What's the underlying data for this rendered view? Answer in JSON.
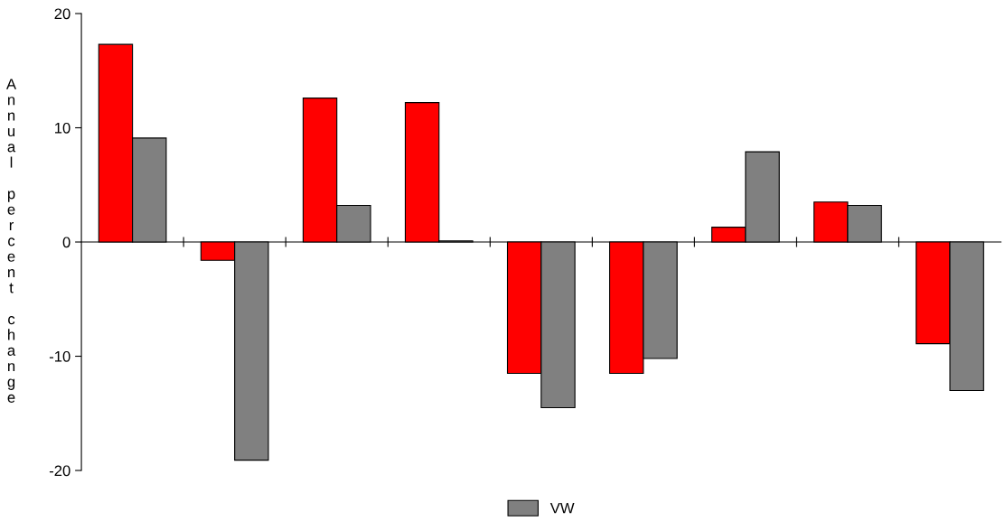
{
  "chart_data": {
    "type": "bar",
    "ylabel": "Annual percent change",
    "categories": [
      null,
      null,
      null,
      null,
      null,
      null,
      null,
      null,
      null
    ],
    "series": [
      {
        "color": "#ff0000",
        "values": [
          17.3,
          -1.6,
          12.6,
          12.2,
          -11.5,
          -11.5,
          1.3,
          3.5,
          -8.9
        ]
      },
      {
        "name": "VW",
        "color": "#808080",
        "values": [
          9.1,
          -19.1,
          3.2,
          0.1,
          -14.5,
          -10.2,
          7.9,
          3.2,
          -13.0
        ]
      }
    ],
    "ylim": [
      -20,
      20
    ],
    "yticks": [
      -20,
      -10,
      0,
      10,
      20
    ],
    "legend": "bottom"
  }
}
